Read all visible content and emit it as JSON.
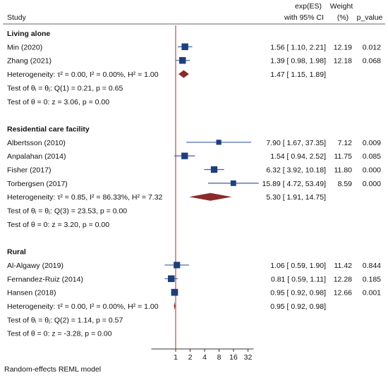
{
  "chart_data": {
    "type": "forest",
    "x_scale": "log2",
    "xlim": [
      0.5,
      64
    ],
    "reference_line": 1,
    "x_ticks": [
      1,
      2,
      4,
      8,
      16,
      32
    ],
    "x_tick_labels": [
      "1",
      "2",
      "4",
      "8",
      "16",
      "32"
    ],
    "footer": "Random-effects REML model",
    "headers": {
      "study": "Study",
      "es_line1": "exp(ES)",
      "es_line2": "with 95% CI",
      "weight_line1": "Weight",
      "weight_line2": "(%)",
      "pvalue": "p_value"
    },
    "colors": {
      "study_marker": "#1f3f7a",
      "ci_line": "#3b5ea8",
      "overall_diamond": "#8b2a2a",
      "reference_line": "#c0392b",
      "axis": "#333333"
    },
    "rows": [
      {
        "kind": "group",
        "label": "Living alone"
      },
      {
        "kind": "study",
        "label": "Min (2020)",
        "es": 1.56,
        "lo": 1.1,
        "hi": 2.21,
        "ci_text": "1.56 [ 1.10,    2.21]",
        "weight": "12.19",
        "p": "0.012"
      },
      {
        "kind": "study",
        "label": "Zhang (2021)",
        "es": 1.39,
        "lo": 0.98,
        "hi": 1.98,
        "ci_text": "1.39 [ 0.98,    1.98]",
        "weight": "12.18",
        "p": "0.068"
      },
      {
        "kind": "overall",
        "label": "Heterogeneity: τ² = 0.00, I² = 0.00%, H² = 1.00",
        "es": 1.47,
        "lo": 1.15,
        "hi": 1.89,
        "ci_text": "1.47 [ 1.15,    1.89]"
      },
      {
        "kind": "note",
        "label": "Test of θᵢ = θⱼ: Q(1) = 0.21, p = 0.65"
      },
      {
        "kind": "note",
        "label": "Test of θ = 0: z = 3.06, p = 0.00"
      },
      {
        "kind": "blank"
      },
      {
        "kind": "group",
        "label": "Residential care facility"
      },
      {
        "kind": "study",
        "label": "Albertsson (2010)",
        "es": 7.9,
        "lo": 1.67,
        "hi": 37.35,
        "ci_text": "7.90 [ 1.67,  37.35]",
        "weight": "7.12",
        "p": "0.009"
      },
      {
        "kind": "study",
        "label": "Anpalahan (2014)",
        "es": 1.54,
        "lo": 0.94,
        "hi": 2.52,
        "ci_text": "1.54 [ 0.94,    2.52]",
        "weight": "11.75",
        "p": "0.085"
      },
      {
        "kind": "study",
        "label": "Fisher (2017)",
        "es": 6.32,
        "lo": 3.92,
        "hi": 10.18,
        "ci_text": "6.32 [ 3.92,  10.18]",
        "weight": "11.80",
        "p": "0.000"
      },
      {
        "kind": "study",
        "label": "Torbergsen (2017)",
        "es": 15.89,
        "lo": 4.72,
        "hi": 53.49,
        "ci_text": "15.89 [ 4.72,  53.49]",
        "weight": "8.59",
        "p": "0.000"
      },
      {
        "kind": "overall",
        "label": "Heterogeneity: τ² = 0.85, I² = 86.33%, H² = 7.32",
        "es": 5.3,
        "lo": 1.91,
        "hi": 14.75,
        "ci_text": "5.30 [ 1.91,  14.75]"
      },
      {
        "kind": "note",
        "label": "Test of θᵢ = θⱼ: Q(3) = 23.53, p = 0.00"
      },
      {
        "kind": "note",
        "label": "Test of θ = 0: z = 3.20, p = 0.00"
      },
      {
        "kind": "blank"
      },
      {
        "kind": "group",
        "label": "Rural"
      },
      {
        "kind": "study",
        "label": "Al-Algawy (2019)",
        "es": 1.06,
        "lo": 0.59,
        "hi": 1.9,
        "ci_text": "1.06 [ 0.59,    1.90]",
        "weight": "11.42",
        "p": "0.844"
      },
      {
        "kind": "study",
        "label": "Fernandez-Ruiz (2014)",
        "es": 0.81,
        "lo": 0.59,
        "hi": 1.11,
        "ci_text": "0.81 [ 0.59,    1.11]",
        "weight": "12.28",
        "p": "0.185"
      },
      {
        "kind": "study",
        "label": "Hansen (2018)",
        "es": 0.95,
        "lo": 0.92,
        "hi": 0.98,
        "ci_text": "0.95 [ 0.92,    0.98]",
        "weight": "12.66",
        "p": "0.001"
      },
      {
        "kind": "overall",
        "label": "Heterogeneity: τ² = 0.00, I² = 0.00%, H² = 1.00",
        "es": 0.95,
        "lo": 0.92,
        "hi": 0.98,
        "ci_text": "0.95 [ 0.92,    0.98]"
      },
      {
        "kind": "note",
        "label": "Test of θᵢ = θⱼ: Q(2) = 1.14, p = 0.57"
      },
      {
        "kind": "note",
        "label": "Test of θ = 0: z = -3.28, p = 0.00"
      }
    ]
  }
}
